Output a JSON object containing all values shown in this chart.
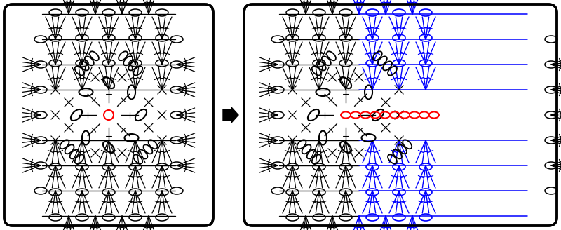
{
  "fig_width": 8.0,
  "fig_height": 3.28,
  "dpi": 100,
  "bg_color": "#ffffff",
  "black": "#000000",
  "red": "#ff0000",
  "blue": "#0000ff"
}
